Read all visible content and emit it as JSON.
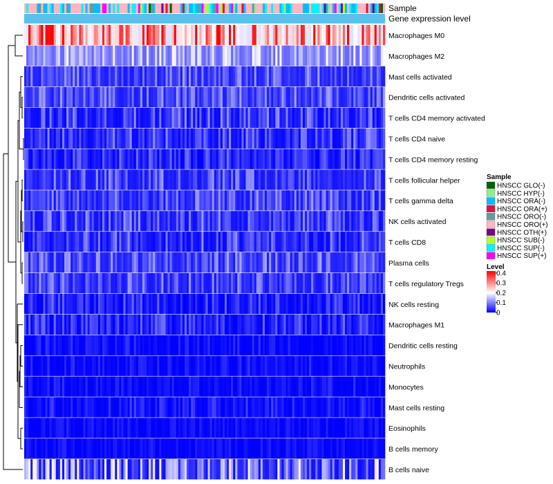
{
  "chart_data": {
    "type": "heatmap",
    "annotation_labels": {
      "sample": "Sample",
      "expression": "Gene expression level"
    },
    "rows": [
      {
        "label": "Macrophages M0",
        "mean": 0.24,
        "spread": 0.13
      },
      {
        "label": "Macrophages M2",
        "mean": 0.11,
        "spread": 0.06
      },
      {
        "label": "Mast cells activated",
        "mean": 0.045,
        "spread": 0.05
      },
      {
        "label": "Dendritic cells activated",
        "mean": 0.045,
        "spread": 0.05
      },
      {
        "label": "T cells CD4 memory activated",
        "mean": 0.03,
        "spread": 0.05
      },
      {
        "label": "T cells CD4 naive",
        "mean": 0.03,
        "spread": 0.05
      },
      {
        "label": "T cells CD4 memory resting",
        "mean": 0.02,
        "spread": 0.04
      },
      {
        "label": "T cells follicular helper",
        "mean": 0.04,
        "spread": 0.05
      },
      {
        "label": "T cells gamma delta",
        "mean": 0.04,
        "spread": 0.05
      },
      {
        "label": "NK cells activated",
        "mean": 0.035,
        "spread": 0.05
      },
      {
        "label": "T cells CD8",
        "mean": 0.03,
        "spread": 0.05
      },
      {
        "label": "Plasma cells",
        "mean": 0.045,
        "spread": 0.05
      },
      {
        "label": "T cells regulatory  Tregs",
        "mean": 0.04,
        "spread": 0.05
      },
      {
        "label": "NK cells resting",
        "mean": 0.02,
        "spread": 0.04
      },
      {
        "label": "Macrophages M1",
        "mean": 0.02,
        "spread": 0.04
      },
      {
        "label": "Dendritic cells resting",
        "mean": 0.006,
        "spread": 0.02
      },
      {
        "label": "Neutrophils",
        "mean": 0.006,
        "spread": 0.02
      },
      {
        "label": "Monocytes",
        "mean": 0.006,
        "spread": 0.02
      },
      {
        "label": "Mast cells resting",
        "mean": 0.01,
        "spread": 0.025
      },
      {
        "label": "Eosinophils",
        "mean": 0.004,
        "spread": 0.015
      },
      {
        "label": "B cells memory",
        "mean": 0.004,
        "spread": 0.015
      },
      {
        "label": "B cells naive",
        "mean": 0.06,
        "spread": 0.1
      }
    ],
    "n_samples": 171,
    "sample_groups": [
      {
        "name": "HNSCC GLO(-)",
        "color": "#006400",
        "weight": 0.04
      },
      {
        "name": "HNSCC HYP(-)",
        "color": "#90EE90",
        "weight": 0.04
      },
      {
        "name": "HNSCC ORA(-)",
        "color": "#00BFFF",
        "weight": 0.22
      },
      {
        "name": "HNSCC ORA(+)",
        "color": "#DC143C",
        "weight": 0.02
      },
      {
        "name": "HNSCC ORO(-)",
        "color": "#5F9EA0",
        "weight": 0.07
      },
      {
        "name": "HNSCC ORO(+)",
        "color": "#FFB6C1",
        "weight": 0.35
      },
      {
        "name": "HNSCC OTH(+)",
        "color": "#800080",
        "weight": 0.02
      },
      {
        "name": "HNSCC SUB(-)",
        "color": "#ADFF2F",
        "weight": 0.04
      },
      {
        "name": "HNSCC SUP(-)",
        "color": "#00F5FF",
        "weight": 0.16
      },
      {
        "name": "HNSCC SUP(+)",
        "color": "#FF00FF",
        "weight": 0.04
      }
    ],
    "expression_bar_color": "#5BC0EB",
    "legend": {
      "sample_title": "Sample",
      "level_title": "Level",
      "level_ticks": [
        "0.4",
        "0.3",
        "0.2",
        "0.1",
        "0"
      ],
      "level_tick_values": [
        0.4,
        0.3,
        0.2,
        0.1,
        0
      ],
      "value_range": [
        0,
        0.42
      ],
      "palette": [
        "#0000FF",
        "#FFFFFF",
        "#FF0000"
      ],
      "palette_midpoint": 0.2
    }
  }
}
